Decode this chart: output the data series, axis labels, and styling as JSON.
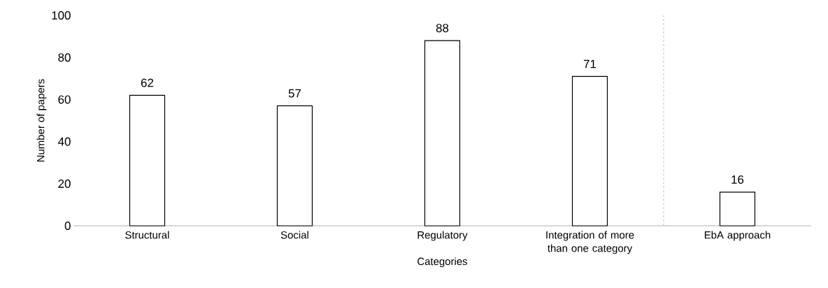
{
  "chart_data": {
    "type": "bar",
    "xlabel": "Categories",
    "ylabel": "Number of papers",
    "categories": [
      "Structural",
      "Social",
      "Regulatory",
      "Integration of more than one category",
      "EbA approach"
    ],
    "values": [
      62,
      57,
      88,
      71,
      16
    ],
    "color": "#ffffff",
    "ylim": [
      0,
      100
    ],
    "yticks": [
      0,
      20,
      40,
      60,
      80,
      100
    ],
    "grid": false,
    "data_labels": true
  }
}
